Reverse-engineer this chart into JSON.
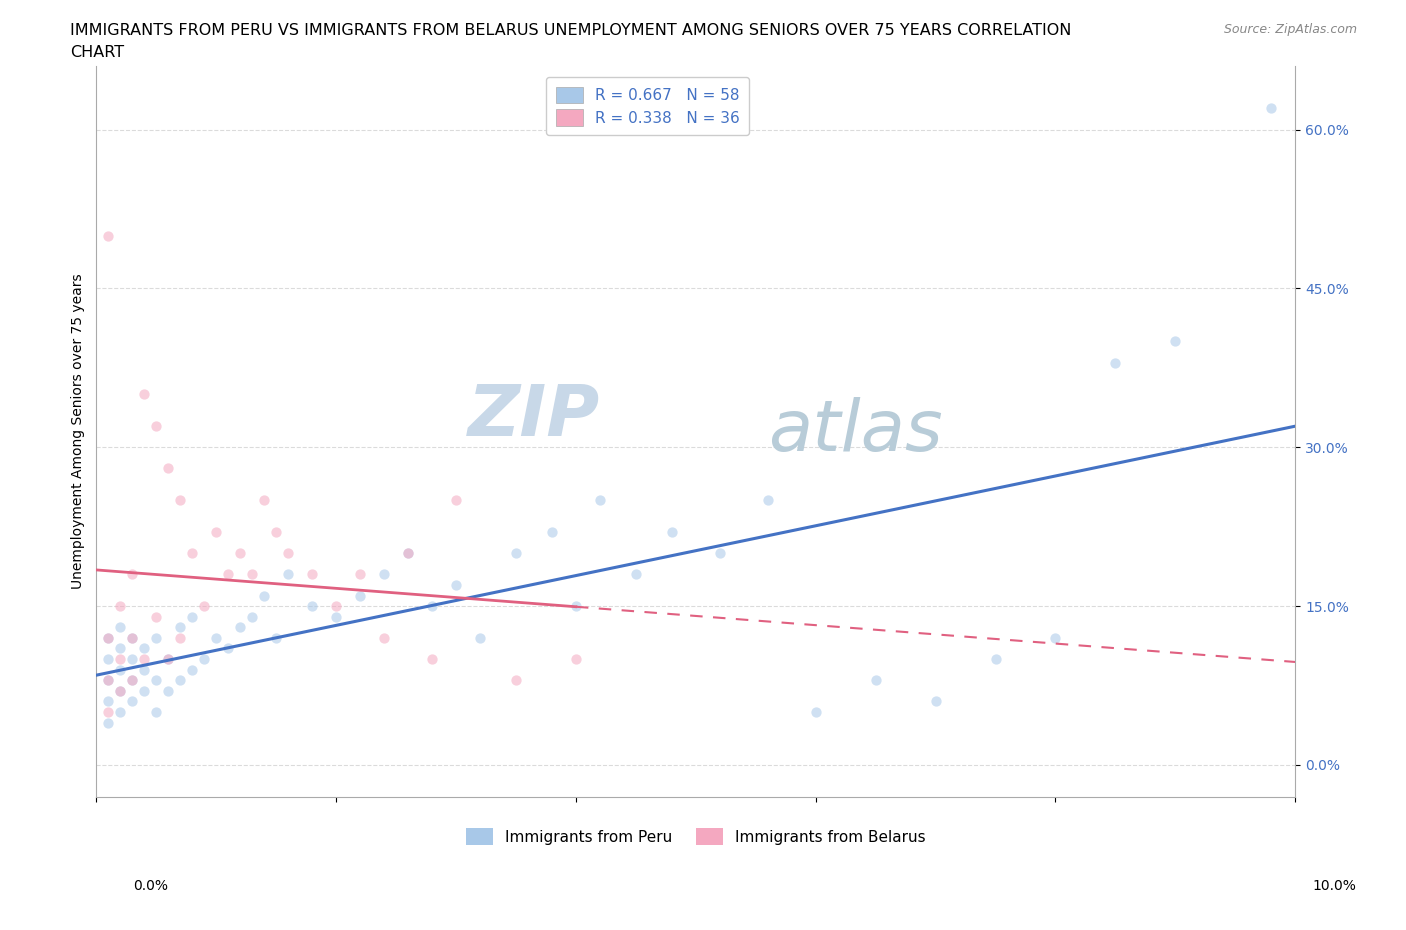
{
  "title_line1": "IMMIGRANTS FROM PERU VS IMMIGRANTS FROM BELARUS UNEMPLOYMENT AMONG SENIORS OVER 75 YEARS CORRELATION",
  "title_line2": "CHART",
  "source": "Source: ZipAtlas.com",
  "ylabel": "Unemployment Among Seniors over 75 years",
  "ytick_labels": [
    "0.0%",
    "15.0%",
    "30.0%",
    "45.0%",
    "60.0%"
  ],
  "ytick_values": [
    0.0,
    0.15,
    0.3,
    0.45,
    0.6
  ],
  "xlim": [
    0.0,
    0.1
  ],
  "ylim": [
    -0.03,
    0.66
  ],
  "peru_color": "#a8c8e8",
  "belarus_color": "#f4a8c0",
  "peru_R": 0.667,
  "peru_N": 58,
  "belarus_R": 0.338,
  "belarus_N": 36,
  "legend_label_peru": "R = 0.667   N = 58",
  "legend_label_belarus": "R = 0.338   N = 36",
  "footer_legend_peru": "Immigrants from Peru",
  "footer_legend_belarus": "Immigrants from Belarus",
  "watermark_zip": "ZIP",
  "watermark_atlas": "atlas",
  "line_color_peru": "#4472c4",
  "line_color_belarus": "#e06080",
  "background_color": "#ffffff",
  "grid_color": "#cccccc",
  "watermark_color": "#c8d8e8",
  "title_fontsize": 11.5,
  "axis_label_fontsize": 10,
  "tick_fontsize": 10,
  "legend_fontsize": 11,
  "source_fontsize": 9,
  "marker_size": 55,
  "marker_alpha": 0.55,
  "peru_x": [
    0.001,
    0.001,
    0.001,
    0.001,
    0.001,
    0.002,
    0.002,
    0.002,
    0.002,
    0.002,
    0.003,
    0.003,
    0.003,
    0.003,
    0.004,
    0.004,
    0.004,
    0.005,
    0.005,
    0.005,
    0.006,
    0.006,
    0.007,
    0.007,
    0.008,
    0.008,
    0.009,
    0.01,
    0.011,
    0.012,
    0.013,
    0.014,
    0.015,
    0.016,
    0.018,
    0.02,
    0.022,
    0.024,
    0.026,
    0.028,
    0.03,
    0.032,
    0.035,
    0.038,
    0.04,
    0.042,
    0.045,
    0.048,
    0.052,
    0.056,
    0.06,
    0.065,
    0.07,
    0.075,
    0.08,
    0.085,
    0.09,
    0.098
  ],
  "peru_y": [
    0.04,
    0.06,
    0.08,
    0.1,
    0.12,
    0.05,
    0.07,
    0.09,
    0.11,
    0.13,
    0.06,
    0.08,
    0.1,
    0.12,
    0.07,
    0.09,
    0.11,
    0.05,
    0.08,
    0.12,
    0.07,
    0.1,
    0.08,
    0.13,
    0.09,
    0.14,
    0.1,
    0.12,
    0.11,
    0.13,
    0.14,
    0.16,
    0.12,
    0.18,
    0.15,
    0.14,
    0.16,
    0.18,
    0.2,
    0.15,
    0.17,
    0.12,
    0.2,
    0.22,
    0.15,
    0.25,
    0.18,
    0.22,
    0.2,
    0.25,
    0.05,
    0.08,
    0.06,
    0.1,
    0.12,
    0.38,
    0.4,
    0.62
  ],
  "belarus_x": [
    0.001,
    0.001,
    0.001,
    0.001,
    0.002,
    0.002,
    0.002,
    0.003,
    0.003,
    0.003,
    0.004,
    0.004,
    0.005,
    0.005,
    0.006,
    0.006,
    0.007,
    0.007,
    0.008,
    0.009,
    0.01,
    0.011,
    0.012,
    0.013,
    0.014,
    0.015,
    0.016,
    0.018,
    0.02,
    0.022,
    0.024,
    0.026,
    0.028,
    0.03,
    0.035,
    0.04
  ],
  "belarus_y": [
    0.05,
    0.08,
    0.12,
    0.5,
    0.07,
    0.1,
    0.15,
    0.08,
    0.12,
    0.18,
    0.35,
    0.1,
    0.32,
    0.14,
    0.28,
    0.1,
    0.25,
    0.12,
    0.2,
    0.15,
    0.22,
    0.18,
    0.2,
    0.18,
    0.25,
    0.22,
    0.2,
    0.18,
    0.15,
    0.18,
    0.12,
    0.2,
    0.1,
    0.25,
    0.08,
    0.1
  ]
}
